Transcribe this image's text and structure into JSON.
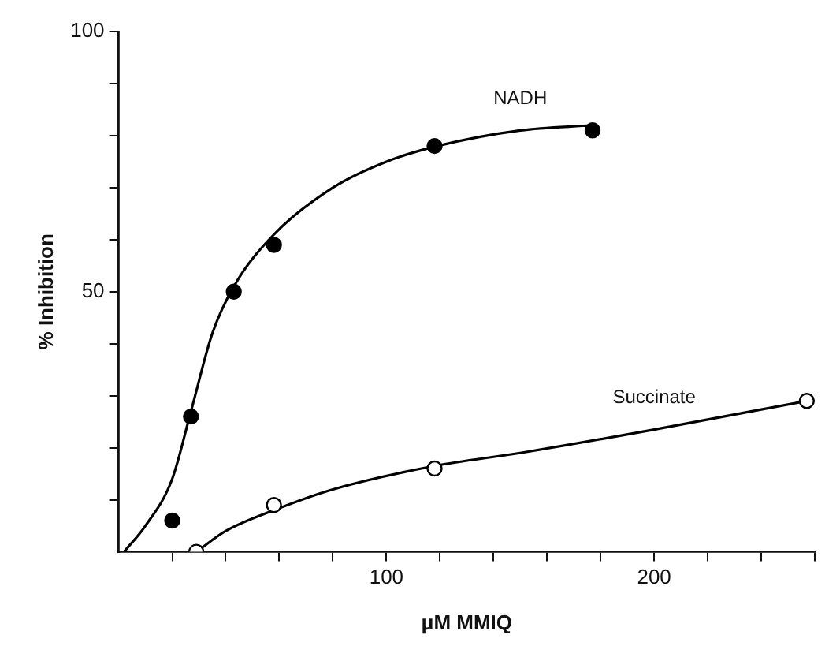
{
  "chart_data": {
    "type": "scatter",
    "xlabel": "μM MMIQ",
    "ylabel": "% Inhibition",
    "xlim": [
      0,
      260
    ],
    "xticks": [
      {
        "value": 20,
        "label": null
      },
      {
        "value": 40,
        "label": null
      },
      {
        "value": 60,
        "label": null
      },
      {
        "value": 80,
        "label": null
      },
      100,
      {
        "value": 120,
        "label": null
      },
      {
        "value": 140,
        "label": null
      },
      {
        "value": 160,
        "label": null
      },
      {
        "value": 180,
        "label": null
      },
      200,
      {
        "value": 220,
        "label": null
      },
      {
        "value": 240,
        "label": null
      },
      {
        "value": 260,
        "label": null
      }
    ],
    "ylim": [
      0,
      100
    ],
    "yticks": [
      {
        "value": 10,
        "label": null
      },
      {
        "value": 20,
        "label": null
      },
      {
        "value": 30,
        "label": null
      },
      {
        "value": 40,
        "label": null
      },
      50,
      {
        "value": 60,
        "label": null
      },
      {
        "value": 70,
        "label": null
      },
      {
        "value": 80,
        "label": null
      },
      {
        "value": 90,
        "label": null
      },
      100
    ],
    "grid": false,
    "legend": false,
    "series": [
      {
        "type": "scatter",
        "color": "#000000",
        "marker": "circle",
        "x": [
          20,
          27,
          43,
          58,
          118,
          177
        ],
        "values": [
          6,
          26,
          50,
          59,
          78,
          81
        ]
      },
      {
        "type": "scatter",
        "color": "#000000",
        "marker": "circle",
        "x": [
          29,
          58,
          118,
          257
        ],
        "values": [
          0,
          9,
          16,
          29
        ]
      },
      {
        "type": "line",
        "name": "NADH",
        "color": "#000000",
        "marker": "none",
        "x": [
          2,
          10,
          20,
          27,
          35,
          43,
          58,
          80,
          100,
          119,
          150,
          177
        ],
        "values": [
          0,
          5,
          14,
          27,
          42,
          51,
          61,
          70,
          75,
          78,
          81,
          82
        ]
      },
      {
        "type": "line",
        "name": "Succinate",
        "color": "#000000",
        "marker": "none",
        "x": [
          29,
          40,
          58,
          80,
          118,
          150,
          200,
          257
        ],
        "values": [
          0,
          4,
          8,
          12,
          16.5,
          19,
          23.5,
          29
        ]
      }
    ]
  }
}
